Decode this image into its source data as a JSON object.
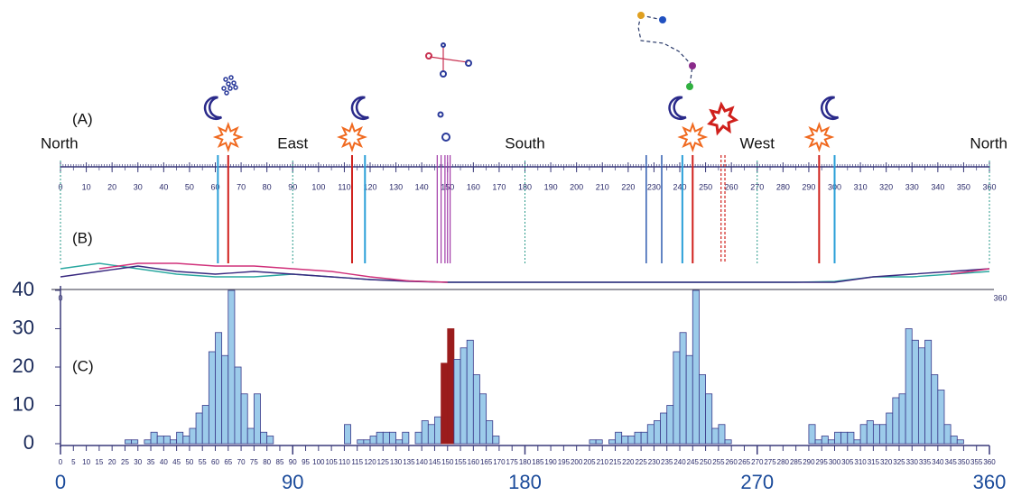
{
  "panel_labels": {
    "a": "(A)",
    "b": "(B)",
    "c": "(C)"
  },
  "panel_a": {
    "directions": [
      "North",
      "East",
      "South",
      "West",
      "North"
    ],
    "direction_azimuths": [
      0,
      90,
      180,
      270,
      360
    ],
    "scale_ticks": [
      0,
      10,
      20,
      30,
      40,
      50,
      60,
      70,
      80,
      90,
      100,
      110,
      120,
      130,
      140,
      150,
      160,
      170,
      180,
      190,
      200,
      210,
      220,
      230,
      240,
      250,
      260,
      270,
      280,
      290,
      300,
      310,
      320,
      330,
      340,
      350,
      360
    ],
    "sun_azimuths": [
      65,
      113,
      245,
      294
    ],
    "moon_azimuths": [
      61,
      118,
      241,
      300
    ],
    "star_azimuths": [
      227,
      233
    ],
    "planet_azimuths": [
      146,
      147.5,
      149,
      150,
      151
    ],
    "nova_azimuths": [
      256,
      257.5
    ],
    "sun_color": "#d0201c",
    "moon_color": "#2a9fd8",
    "star_color": "#2f5cb0",
    "planet_color": "#a23ca8",
    "cardinal_color": "#2a9a8a"
  },
  "panel_b": {
    "end_labels": [
      0,
      360
    ],
    "x": [
      0,
      15,
      30,
      45,
      60,
      75,
      90,
      105,
      120,
      135,
      150,
      165,
      180,
      195,
      210,
      225,
      240,
      255,
      270,
      285,
      300,
      315,
      330,
      345,
      360
    ],
    "ylim": [
      0,
      10
    ],
    "series": [
      {
        "color": "#2aa8a0",
        "values": [
          5,
          7,
          5,
          3,
          2,
          2,
          3,
          2,
          1,
          0.5,
          0,
          0,
          0,
          0,
          0,
          0,
          0,
          0,
          0,
          0,
          0.3,
          2,
          2,
          3,
          4
        ]
      },
      {
        "color": "#3a2a80",
        "values": [
          2,
          4,
          6,
          4,
          3,
          4,
          3,
          2,
          1,
          0.3,
          0,
          0,
          0,
          0,
          0,
          0,
          0,
          0,
          0,
          0,
          0,
          2,
          3,
          4,
          5
        ]
      },
      {
        "color": "#d0307a",
        "values": [
          null,
          5,
          7,
          7,
          6,
          6,
          5,
          4,
          2,
          0.5,
          0,
          null,
          null,
          null,
          null,
          null,
          null,
          null,
          null,
          null,
          null,
          null,
          null,
          3,
          5
        ]
      }
    ]
  },
  "chart_data": {
    "type": "histogram",
    "bins": [
      0,
      2.5,
      5,
      7.5,
      10,
      12.5,
      15,
      17.5,
      20,
      22.5,
      25,
      27.5,
      30,
      32.5,
      35,
      37.5,
      40,
      42.5,
      45,
      47.5,
      50,
      52.5,
      55,
      57.5,
      60,
      62.5,
      65,
      67.5,
      70,
      72.5,
      75,
      77.5,
      80,
      82.5,
      85,
      87.5,
      90,
      92.5,
      95,
      97.5,
      100,
      102.5,
      105,
      107.5,
      110,
      112.5,
      115,
      117.5,
      120,
      122.5,
      125,
      127.5,
      130,
      132.5,
      135,
      137.5,
      140,
      142.5,
      145,
      147.5,
      150,
      152.5,
      155,
      157.5,
      160,
      162.5,
      165,
      167.5,
      170,
      172.5,
      175,
      177.5,
      180,
      182.5,
      185,
      187.5,
      190,
      192.5,
      195,
      197.5,
      200,
      202.5,
      205,
      207.5,
      210,
      212.5,
      215,
      217.5,
      220,
      222.5,
      225,
      227.5,
      230,
      232.5,
      235,
      237.5,
      240,
      242.5,
      245,
      247.5,
      250,
      252.5,
      255,
      257.5,
      260,
      262.5,
      265,
      267.5,
      270,
      272.5,
      275,
      277.5,
      280,
      282.5,
      285,
      287.5,
      290,
      292.5,
      295,
      297.5,
      300,
      302.5,
      305,
      307.5,
      310,
      312.5,
      315,
      317.5,
      320,
      322.5,
      325,
      327.5,
      330,
      332.5,
      335,
      337.5,
      340,
      342.5,
      345,
      347.5,
      350,
      352.5,
      355,
      357.5,
      360
    ],
    "values": [
      0,
      0,
      0,
      0,
      0,
      0,
      0,
      0,
      0,
      0,
      1,
      1,
      0,
      1,
      3,
      2,
      2,
      1,
      3,
      2,
      4,
      8,
      10,
      24,
      29,
      23,
      40,
      20,
      13,
      4,
      13,
      3,
      2,
      0,
      0,
      0,
      0,
      0,
      0,
      0,
      0,
      0,
      0,
      0,
      5,
      0,
      1,
      1,
      2,
      3,
      3,
      3,
      1,
      3,
      0,
      3,
      6,
      5,
      7,
      21,
      30,
      22,
      25,
      27,
      18,
      13,
      6,
      2,
      0,
      0,
      0,
      0,
      0,
      0,
      0,
      0,
      0,
      0,
      0,
      0,
      0,
      0,
      1,
      1,
      0,
      1,
      3,
      2,
      2,
      3,
      3,
      5,
      6,
      8,
      10,
      24,
      29,
      23,
      40,
      18,
      13,
      4,
      5,
      1,
      0,
      0,
      0,
      0,
      0,
      0,
      0,
      0,
      0,
      0,
      0,
      0,
      5,
      1,
      2,
      1,
      3,
      3,
      3,
      1,
      5,
      6,
      5,
      5,
      8,
      12,
      13,
      30,
      27,
      25,
      27,
      18,
      14,
      5,
      2,
      1,
      0,
      0,
      0,
      0
    ],
    "color": "#9ccbea",
    "edge_color": "#3a3a8a",
    "highlight_color": "#9b1c1c",
    "highlight_bars": [
      59,
      60
    ],
    "xlim": [
      0,
      360
    ],
    "ylim": [
      0,
      40
    ],
    "yticks": [
      0,
      10,
      20,
      30,
      40
    ],
    "xticks": [
      0,
      5,
      10,
      15,
      20,
      25,
      30,
      35,
      40,
      45,
      50,
      55,
      60,
      65,
      70,
      75,
      80,
      85,
      90,
      95,
      100,
      105,
      110,
      115,
      120,
      125,
      130,
      135,
      140,
      145,
      150,
      155,
      160,
      165,
      170,
      175,
      180,
      185,
      190,
      195,
      200,
      205,
      210,
      215,
      220,
      225,
      230,
      235,
      240,
      245,
      250,
      255,
      260,
      265,
      270,
      275,
      280,
      285,
      290,
      295,
      300,
      305,
      310,
      315,
      320,
      325,
      330,
      335,
      340,
      345,
      350,
      355,
      360
    ],
    "xticks_major": [
      0,
      90,
      180,
      270,
      360
    ]
  }
}
